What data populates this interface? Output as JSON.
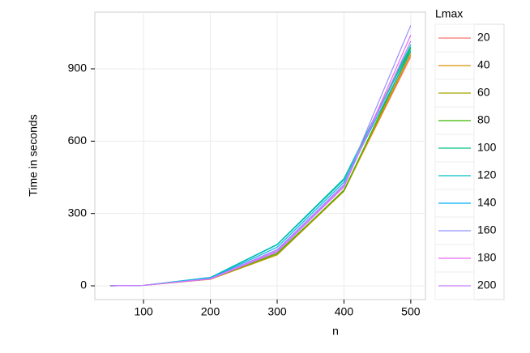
{
  "chart_data": {
    "type": "line",
    "x_label": "n",
    "y_label": "Time in seconds",
    "legend_title": "Lmax",
    "x": [
      50,
      100,
      200,
      300,
      400,
      500
    ],
    "xlim": [
      27,
      522
    ],
    "xticks": [
      100,
      200,
      300,
      400,
      500
    ],
    "ylim": [
      -57,
      1135
    ],
    "yticks": [
      0,
      300,
      600,
      900
    ],
    "grid": true,
    "series": [
      {
        "name": "20",
        "color": "#F8766D",
        "values": [
          0,
          2,
          28,
          130,
          395,
          950
        ]
      },
      {
        "name": "40",
        "color": "#D89000",
        "values": [
          0,
          2,
          27,
          128,
          392,
          960
        ]
      },
      {
        "name": "60",
        "color": "#A3A500",
        "values": [
          0,
          2,
          28,
          130,
          398,
          970
        ]
      },
      {
        "name": "80",
        "color": "#39B600",
        "values": [
          0,
          2,
          30,
          135,
          395,
          985
        ]
      },
      {
        "name": "100",
        "color": "#00BF7D",
        "values": [
          0,
          2,
          33,
          170,
          440,
          990
        ]
      },
      {
        "name": "120",
        "color": "#00BFC4",
        "values": [
          0,
          2,
          35,
          172,
          445,
          1000
        ]
      },
      {
        "name": "140",
        "color": "#00B0F6",
        "values": [
          0,
          2,
          32,
          160,
          430,
          975
        ]
      },
      {
        "name": "160",
        "color": "#9590FF",
        "values": [
          0,
          2,
          30,
          150,
          420,
          1080
        ]
      },
      {
        "name": "180",
        "color": "#E76BF3",
        "values": [
          0,
          2,
          28,
          140,
          410,
          1040
        ]
      },
      {
        "name": "200",
        "color": "#C77CFF",
        "values": [
          0,
          2,
          30,
          145,
          415,
          1015
        ]
      }
    ]
  }
}
